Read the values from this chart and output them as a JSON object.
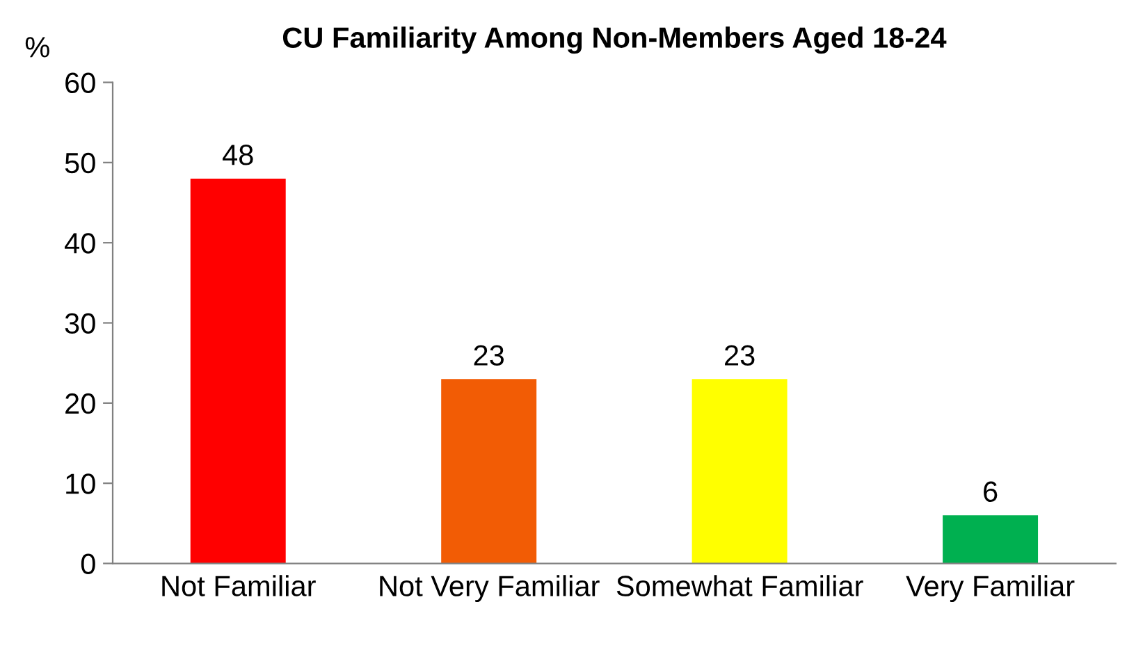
{
  "chart_data": {
    "type": "bar",
    "title": "CU Familiarity Among Non-Members Aged 18-24",
    "ylabel": "%",
    "categories": [
      "Not Familiar",
      "Not Very Familiar",
      "Somewhat Familiar",
      "Very Familiar"
    ],
    "values": [
      48,
      23,
      23,
      6
    ],
    "colors": [
      "#ff0000",
      "#f25c05",
      "#ffff00",
      "#00b050"
    ],
    "ylim": [
      0,
      60
    ],
    "yticks": [
      0,
      10,
      20,
      30,
      40,
      50,
      60
    ],
    "data_labels": true,
    "grid": false,
    "legend": false
  }
}
